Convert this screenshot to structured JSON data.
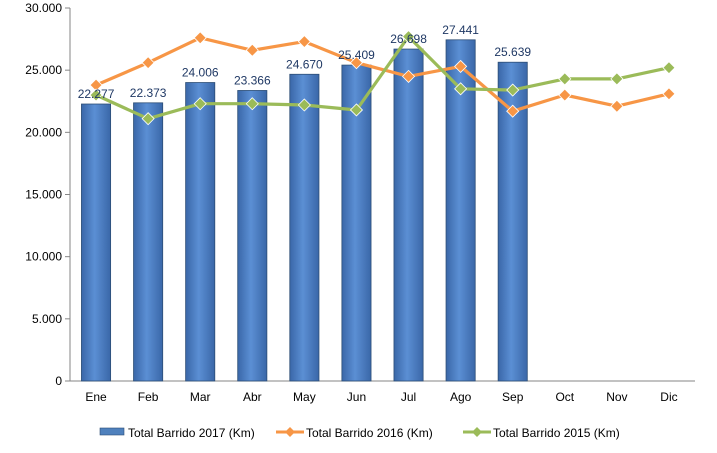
{
  "chart_data": {
    "type": "bar",
    "categories": [
      "Ene",
      "Feb",
      "Mar",
      "Abr",
      "May",
      "Jun",
      "Jul",
      "Ago",
      "Sep",
      "Oct",
      "Nov",
      "Dic"
    ],
    "ylim": [
      0,
      30000
    ],
    "yticks": [
      0,
      5000,
      10000,
      15000,
      20000,
      25000,
      30000
    ],
    "ytick_labels": [
      "0",
      "5.000",
      "10.000",
      "15.000",
      "20.000",
      "25.000",
      "30.000"
    ],
    "grid": false,
    "legend_position": "bottom",
    "series": [
      {
        "name": "Total Barrido 2017 (Km)",
        "kind": "bar",
        "color": "#4f81bd",
        "values": [
          22277,
          22373,
          24006,
          23366,
          24670,
          25409,
          26698,
          27441,
          25639,
          null,
          null,
          null
        ],
        "data_labels": [
          "22.277",
          "22.373",
          "24.006",
          "23.366",
          "24.670",
          "25.409",
          "26.698",
          "27.441",
          "25.639",
          null,
          null,
          null
        ]
      },
      {
        "name": "Total Barrido 2016 (Km)",
        "kind": "line",
        "color": "#f79646",
        "values": [
          23800,
          25600,
          27600,
          26600,
          27300,
          25600,
          24500,
          25300,
          21700,
          23000,
          22100,
          23100
        ]
      },
      {
        "name": "Total Barrido 2015 (Km)",
        "kind": "line",
        "color": "#9bbb59",
        "values": [
          23000,
          21100,
          22300,
          22300,
          22200,
          21800,
          27700,
          23500,
          23400,
          24300,
          24300,
          25200
        ]
      }
    ]
  }
}
